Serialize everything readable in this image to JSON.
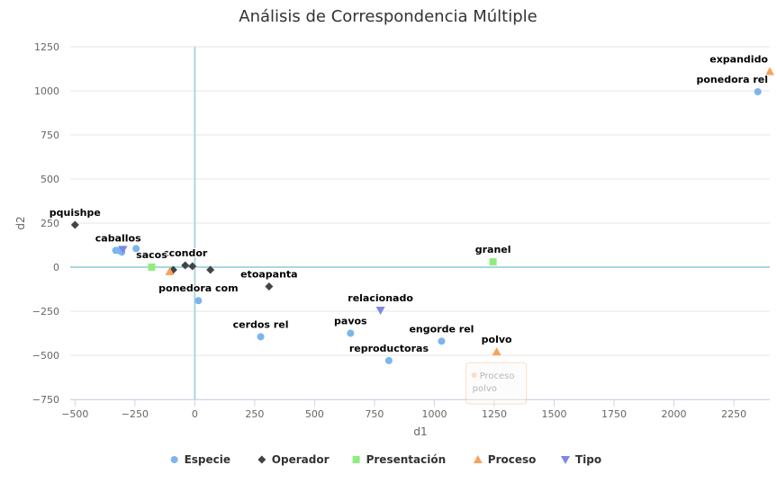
{
  "chart_data": {
    "type": "scatter",
    "title": "Análisis de Correspondencia Múltiple",
    "xlabel": "d1",
    "ylabel": "d2",
    "xlim": [
      -520,
      2400
    ],
    "ylim": [
      -750,
      1250
    ],
    "xticks": [
      -500,
      -250,
      0,
      250,
      500,
      750,
      1000,
      1250,
      1500,
      1750,
      2000,
      2250
    ],
    "yticks": [
      -750,
      -500,
      -250,
      0,
      250,
      500,
      750,
      1000,
      1250
    ],
    "reference_lines": {
      "x": 0,
      "y": 0,
      "color": "#a8d8df"
    },
    "grid": "horizontal",
    "legend_position": "bottom",
    "series": [
      {
        "name": "Especie",
        "marker": "circle",
        "color": "#7cb5ec",
        "points": [
          {
            "x": 2350,
            "y": 995,
            "label": "ponedora rel"
          },
          {
            "x": -320,
            "y": 95,
            "label": "caballos"
          },
          {
            "x": -305,
            "y": 85,
            "label": ""
          },
          {
            "x": -245,
            "y": 105,
            "label": ""
          },
          {
            "x": -330,
            "y": 95,
            "label": ""
          },
          {
            "x": 15,
            "y": -190,
            "label": "ponedora com"
          },
          {
            "x": 275,
            "y": -395,
            "label": "cerdos rel"
          },
          {
            "x": 650,
            "y": -375,
            "label": "pavos"
          },
          {
            "x": 1030,
            "y": -420,
            "label": "engorde rel"
          },
          {
            "x": 810,
            "y": -530,
            "label": "reproductoras"
          }
        ]
      },
      {
        "name": "Operador",
        "marker": "diamond",
        "color": "#434348",
        "points": [
          {
            "x": -500,
            "y": 240,
            "label": "pquishpe"
          },
          {
            "x": -40,
            "y": 10,
            "label": "ccondor"
          },
          {
            "x": -10,
            "y": 5,
            "label": ""
          },
          {
            "x": -90,
            "y": -15,
            "label": ""
          },
          {
            "x": 65,
            "y": -15,
            "label": ""
          },
          {
            "x": 310,
            "y": -110,
            "label": "etoapanta"
          }
        ]
      },
      {
        "name": "Presentación",
        "marker": "square",
        "color": "#90ed7d",
        "points": [
          {
            "x": 1245,
            "y": 30,
            "label": "granel"
          },
          {
            "x": -180,
            "y": 0,
            "label": "sacos"
          }
        ]
      },
      {
        "name": "Proceso",
        "marker": "triangle",
        "color": "#f7a35c",
        "points": [
          {
            "x": 2400,
            "y": 1110,
            "label": "expandido"
          },
          {
            "x": 1260,
            "y": -480,
            "label": "polvo"
          },
          {
            "x": -105,
            "y": -25,
            "label": ""
          }
        ]
      },
      {
        "name": "Tipo",
        "marker": "triangle-down",
        "color": "#8085e9",
        "points": [
          {
            "x": 775,
            "y": -245,
            "label": "relacionado"
          },
          {
            "x": -300,
            "y": 100,
            "label": ""
          }
        ]
      }
    ],
    "tooltip": {
      "series": "Proceso",
      "point": "polvo"
    }
  }
}
